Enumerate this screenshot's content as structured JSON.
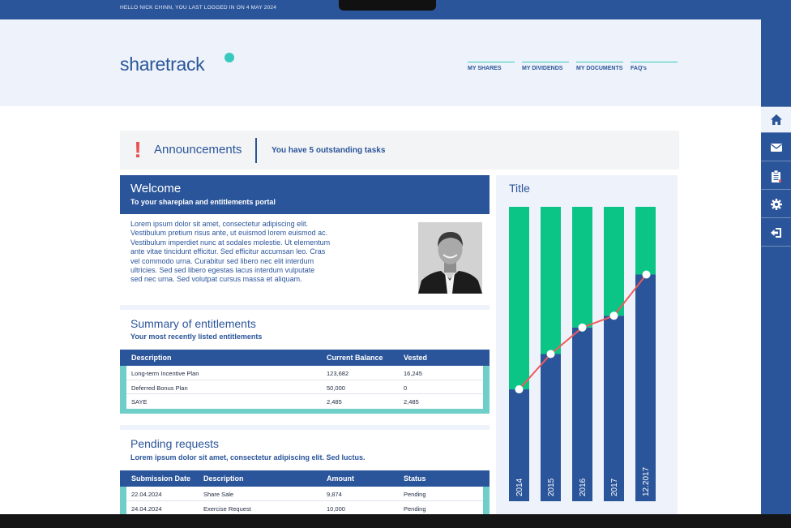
{
  "topbar": {
    "greeting": "HELLO NICK CHINN, YOU LAST LOGGED IN ON 4 MAY 2024"
  },
  "header": {
    "logo": "sharetrack",
    "nav": [
      "MY SHARES",
      "MY DIVIDENDS",
      "MY DOCUMENTS",
      "FAQ's"
    ]
  },
  "announcements": {
    "title": "Announcements",
    "tasks": "You have 5 outstanding tasks",
    "alert_glyph": "!"
  },
  "welcome": {
    "title": "Welcome",
    "subtitle": "To your shareplan and entitlements portal",
    "body_lines": [
      "Lorem ipsum dolor sit amet, consectetur adipiscing elit.",
      "Vestibulum pretium risus ante, ut euismod lorem euismod ac.",
      "Vestibulum imperdiet nunc at sodales molestie. Ut elementum",
      "ante vitae tincidunt efficitur. Sed efficitur accumsan leo. Cras",
      "vel commodo urna. Curabitur sed libero nec elit interdum",
      "ultricies. Sed sed libero egestas lacus interdum vulputate",
      "sed nec urna. Sed volutpat cursus massa et aliquam."
    ]
  },
  "summary": {
    "title": "Summary of entitlements",
    "subtitle": "Your most recently listed entitlements",
    "columns": [
      "Description",
      "Current Balance",
      "Vested"
    ],
    "rows": [
      [
        "Long-term Incentive Plan",
        "123,682",
        "16,245"
      ],
      [
        "Deferred Bonus Plan",
        "50,000",
        "0"
      ],
      [
        "SAYE",
        "2,485",
        "2,485"
      ]
    ]
  },
  "pending": {
    "title": "Pending requests",
    "subtitle": "Lorem ipsum dolor sit amet, consectetur adipiscing elit. Sed luctus.",
    "columns": [
      "Submission Date",
      "Description",
      "Amount",
      "Status"
    ],
    "rows": [
      [
        "22.04.2024",
        "Share Sale",
        "9,874",
        "Pending"
      ],
      [
        "24.04.2024",
        "Exercise Request",
        "10,000",
        "Pending"
      ]
    ]
  },
  "sidebar": {
    "icons": [
      "home-icon",
      "mail-icon",
      "clipboard-icon",
      "gear-icon",
      "logout-icon"
    ]
  },
  "colors": {
    "primary": "#2b559a",
    "accent": "#38c9bd",
    "green": "#0bc586",
    "line": "#ef5b5b",
    "alert": "#ef4e4e"
  },
  "chart_data": {
    "type": "bar",
    "title": "Title",
    "categories": [
      "2014",
      "2015",
      "2016",
      "2017",
      "12.2017"
    ],
    "ylim": [
      0,
      100
    ],
    "series": [
      {
        "values": [
          38,
          50,
          59,
          63,
          77
        ]
      },
      {
        "values": [
          62,
          50,
          41,
          37,
          23
        ]
      }
    ],
    "line": [
      38,
      50,
      59,
      63,
      77
    ],
    "stacked": true,
    "grid": false
  }
}
